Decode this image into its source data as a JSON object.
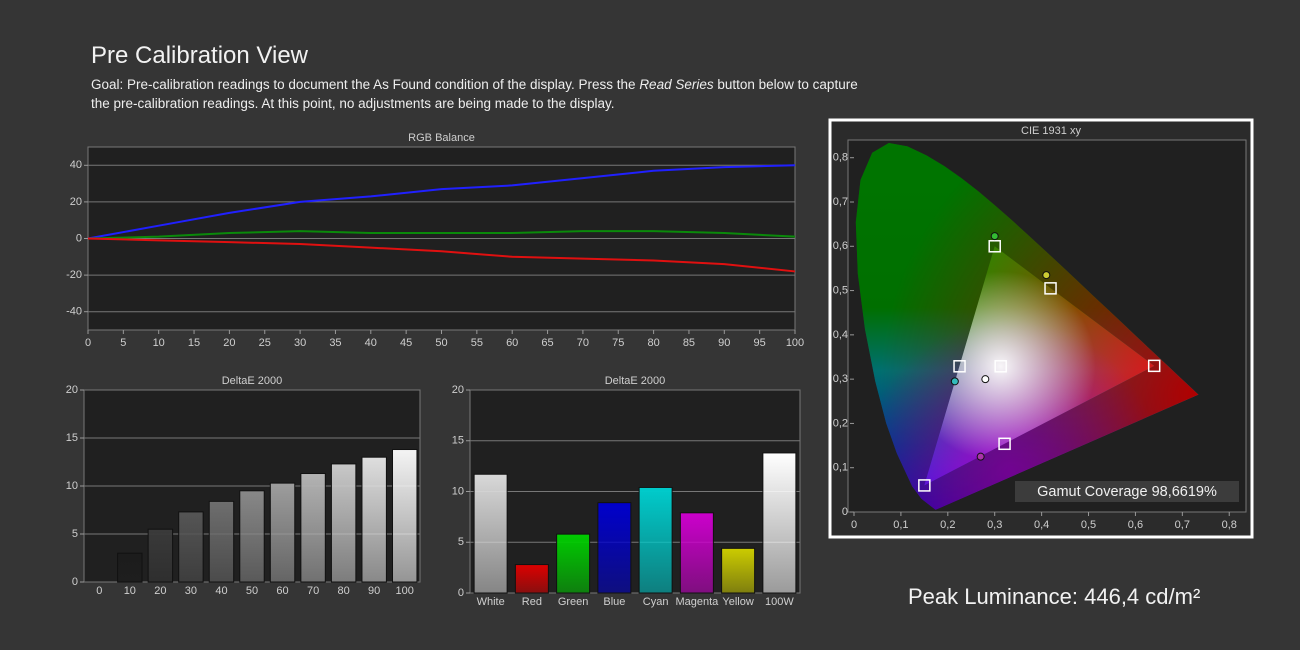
{
  "header": {
    "title": "Pre Calibration View",
    "goal": [
      "Goal: Pre-calibration readings to document the As Found condition of the display. Press the ",
      "Read Series",
      " button below to capture the pre-calibration readings. At this point, no adjustments are being made to the display."
    ]
  },
  "chart_data": [
    {
      "type": "line",
      "title": "RGB Balance",
      "x": [
        0,
        10,
        20,
        30,
        40,
        50,
        60,
        70,
        80,
        90,
        100
      ],
      "xlim": [
        0,
        100
      ],
      "xticks": [
        0,
        5,
        10,
        15,
        20,
        25,
        30,
        35,
        40,
        45,
        50,
        55,
        60,
        65,
        70,
        75,
        80,
        85,
        90,
        95,
        100
      ],
      "ylim": [
        -50,
        50
      ],
      "yticks": [
        -40,
        -20,
        0,
        20,
        40
      ],
      "grid": true,
      "series": [
        {
          "color": "#2020ff",
          "values": [
            0,
            7,
            14,
            20,
            23,
            27,
            29,
            33,
            37,
            39,
            40
          ]
        },
        {
          "color": "#0a8a0a",
          "values": [
            0,
            1,
            3,
            4,
            3,
            3,
            3,
            4,
            4,
            3,
            1
          ]
        },
        {
          "color": "#e01010",
          "values": [
            0,
            -1,
            -2,
            -3,
            -5,
            -7,
            -10,
            -11,
            -12,
            -14,
            -18
          ]
        }
      ]
    },
    {
      "type": "bar",
      "title": "DeltaE 2000",
      "categories": [
        "0",
        "10",
        "20",
        "30",
        "40",
        "50",
        "60",
        "70",
        "80",
        "90",
        "100"
      ],
      "values": [
        0,
        3.0,
        5.5,
        7.3,
        8.4,
        9.5,
        10.3,
        11.3,
        12.3,
        13.0,
        13.8
      ],
      "colors": [
        "#000000",
        "#1c1c1c",
        "#3a3a3a",
        "#555555",
        "#6e6e6e",
        "#888888",
        "#9d9d9d",
        "#b3b3b3",
        "#c8c8c8",
        "#dedede",
        "#f4f4f4"
      ],
      "ylim": [
        0,
        20
      ],
      "yticks": [
        0,
        5,
        10,
        15,
        20
      ],
      "grid": true
    },
    {
      "type": "bar",
      "title": "DeltaE 2000",
      "categories": [
        "White",
        "Red",
        "Green",
        "Blue",
        "Cyan",
        "Magenta",
        "Yellow",
        "100W"
      ],
      "values": [
        11.7,
        2.8,
        5.8,
        8.9,
        10.4,
        7.9,
        4.4,
        13.8
      ],
      "colors": [
        "#d8d8d8",
        "#dd0000",
        "#00cc00",
        "#0000cc",
        "#00cccc",
        "#cc00cc",
        "#cccc00",
        "#ffffff"
      ],
      "ylim": [
        0,
        20
      ],
      "yticks": [
        0,
        5,
        10,
        15,
        20
      ],
      "grid": true
    },
    {
      "type": "scatter",
      "title": "CIE 1931 xy",
      "xlim": [
        0,
        0.84
      ],
      "ylim": [
        0,
        0.84
      ],
      "grid": false,
      "xticks": [
        0,
        {
          "value": 0.1,
          "label": "0,1"
        },
        {
          "value": 0.2,
          "label": "0,2"
        },
        {
          "value": 0.3,
          "label": "0,3"
        },
        {
          "value": 0.4,
          "label": "0,4"
        },
        {
          "value": 0.5,
          "label": "0,5"
        },
        {
          "value": 0.6,
          "label": "0,6"
        },
        {
          "value": 0.7,
          "label": "0,7"
        },
        {
          "value": 0.8,
          "label": "0,8"
        }
      ],
      "yticks": [
        0,
        {
          "value": 0.1,
          "label": "0,1"
        },
        {
          "value": 0.2,
          "label": "0,2"
        },
        {
          "value": 0.3,
          "label": "0,3"
        },
        {
          "value": 0.4,
          "label": "0,4"
        },
        {
          "value": 0.5,
          "label": "0,5"
        },
        {
          "value": 0.6,
          "label": "0,6"
        },
        {
          "value": 0.7,
          "label": "0,7"
        },
        {
          "value": 0.8,
          "label": "0,8"
        }
      ],
      "series": [
        {
          "marker": "square",
          "color": "#ffffff",
          "x": [
            0.64,
            0.3,
            0.15,
            0.3127,
            0.225,
            0.321,
            0.419
          ],
          "y": [
            0.33,
            0.6,
            0.06,
            0.329,
            0.329,
            0.154,
            0.505
          ]
        },
        {
          "marker": "circle",
          "colors": [
            "#33bb33",
            "#cccc33",
            "#33bbbb",
            "#ffffff",
            "#aa33aa"
          ],
          "x": [
            0.3,
            0.41,
            0.215,
            0.28,
            0.27
          ],
          "y": [
            0.623,
            0.535,
            0.295,
            0.3,
            0.125
          ]
        }
      ],
      "annotation": "Gamut Coverage 98,6619%"
    }
  ],
  "footer": {
    "peak_luminance": "Peak Luminance: 446,4 cd/m²"
  }
}
